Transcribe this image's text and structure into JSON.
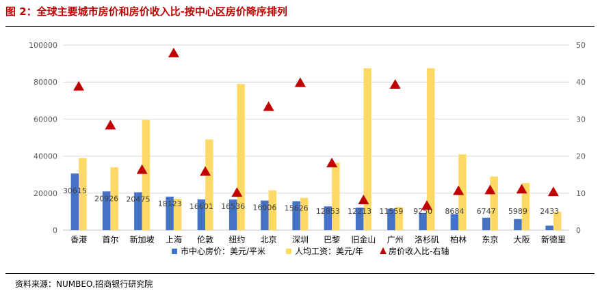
{
  "header": {
    "title": "图 2：全球主要城市房价和房价收入比-按中心区房价降序排列",
    "source": "资料来源：NUMBEO,招商银行研究院"
  },
  "chart_data": {
    "type": "bar",
    "title": "",
    "categories": [
      "香港",
      "首尔",
      "新加坡",
      "上海",
      "伦敦",
      "纽约",
      "北京",
      "深圳",
      "巴黎",
      "旧金山",
      "广州",
      "洛杉矶",
      "柏林",
      "东京",
      "大阪",
      "新德里"
    ],
    "series": [
      {
        "name": "市中心房价：美元/平米",
        "axis": "left",
        "type": "bar",
        "color": "#4472c4",
        "values": [
          30615,
          20926,
          20475,
          18123,
          16601,
          16536,
          16006,
          15626,
          12853,
          12213,
          11559,
          9250,
          8684,
          6747,
          5989,
          2433
        ]
      },
      {
        "name": "人均工资：美元/年",
        "axis": "left",
        "type": "bar",
        "color": "#ffd966",
        "values": [
          39000,
          34000,
          59500,
          17000,
          49000,
          79000,
          21500,
          17500,
          36500,
          87500,
          12500,
          87500,
          41000,
          29000,
          25500,
          10000
        ]
      },
      {
        "name": "房价收入比-右轴",
        "axis": "right",
        "type": "scatter",
        "marker": "triangle",
        "color": "#c00000",
        "values": [
          39,
          28.5,
          16.5,
          48,
          16,
          10.3,
          33.5,
          40,
          18.3,
          8.3,
          39.5,
          6.8,
          10.8,
          11,
          11.2,
          10.5
        ]
      }
    ],
    "y_left": {
      "min": 0,
      "max": 100000,
      "ticks": [
        0,
        20000,
        40000,
        60000,
        80000,
        100000
      ]
    },
    "y_right": {
      "min": 0,
      "max": 50,
      "ticks": [
        0,
        10,
        20,
        30,
        40,
        50
      ]
    },
    "data_labels_series": 0,
    "legend_position": "bottom"
  }
}
